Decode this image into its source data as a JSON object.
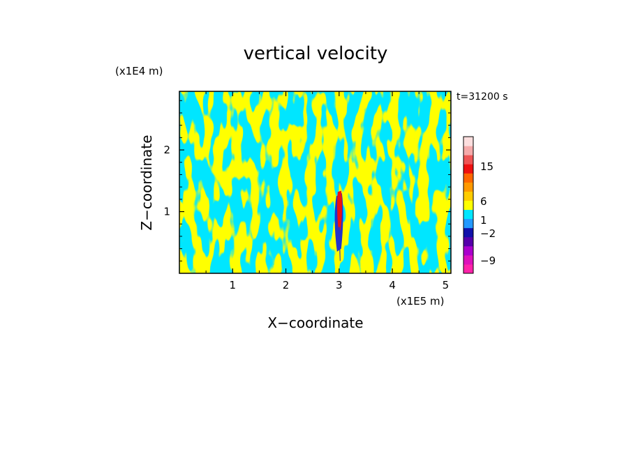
{
  "chart_data": {
    "type": "heatmap",
    "title": "vertical velocity",
    "xlabel": "X−coordinate",
    "ylabel": "Z−coordinate",
    "x_unit": "(x1E5 m)",
    "y_unit": "(x1E4 m)",
    "time_label": "t=31200 s",
    "x_ticks": [
      "1",
      "2",
      "3",
      "4",
      "5"
    ],
    "y_ticks": [
      "1",
      "2"
    ],
    "xlim": [
      0,
      5.1
    ],
    "ylim": [
      0,
      2.95
    ],
    "field_colors": {
      "updraft": "#ffff00",
      "downdraft": "#00e6ff",
      "core_positive": "#ee1111",
      "core_negative": "#2233cc"
    },
    "colorbar": {
      "tick_labels": [
        "15",
        "6",
        "1",
        "−2",
        "−9"
      ],
      "levels": [
        {
          "color": "#ff22aa"
        },
        {
          "color": "#dd11bb"
        },
        {
          "color": "#aa00cc"
        },
        {
          "color": "#5500aa"
        },
        {
          "color": "#1111aa"
        },
        {
          "color": "#2299ff"
        },
        {
          "color": "#00e6ff"
        },
        {
          "color": "#ffff00"
        },
        {
          "color": "#ffcc00"
        },
        {
          "color": "#ff9900"
        },
        {
          "color": "#ff6600"
        },
        {
          "color": "#ee1111"
        },
        {
          "color": "#ee5555"
        },
        {
          "color": "#f5aaaa"
        },
        {
          "color": "#fcdede"
        }
      ]
    }
  }
}
